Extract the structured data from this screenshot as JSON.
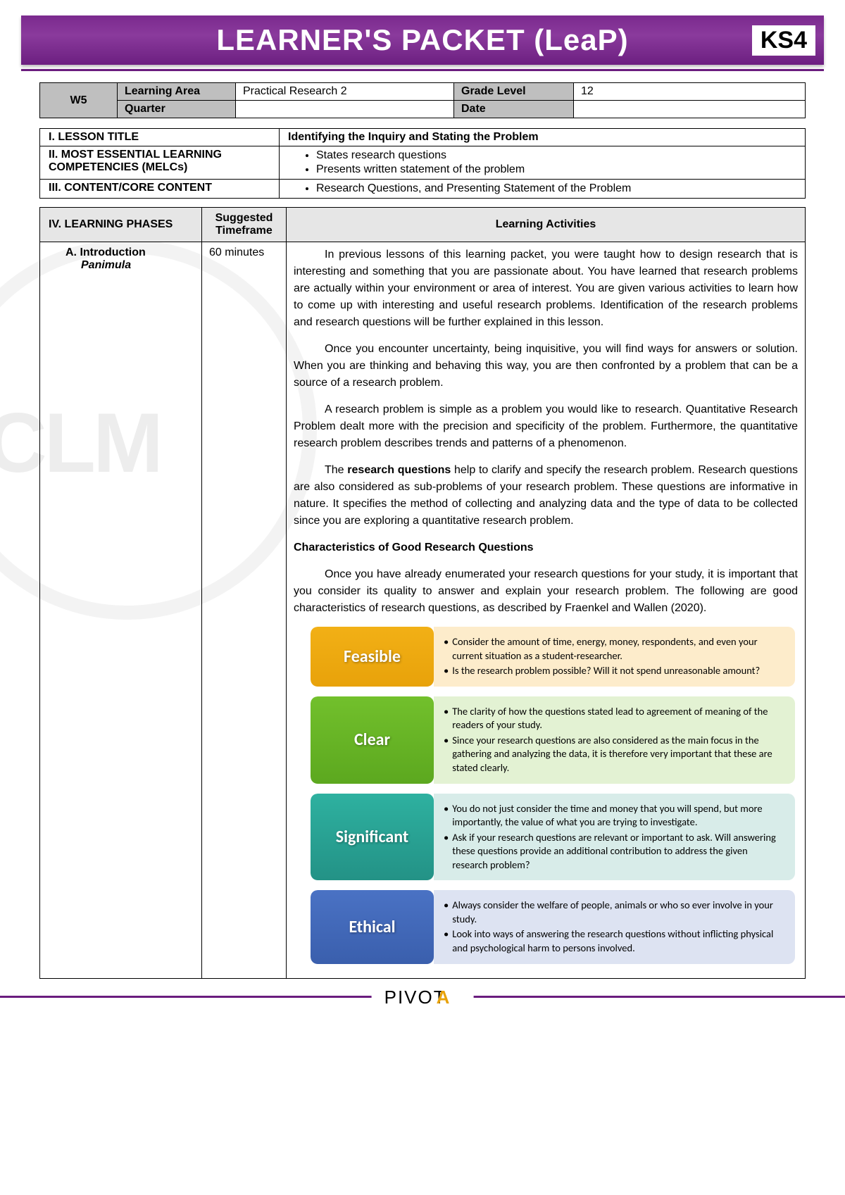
{
  "banner": {
    "title": "LEARNER'S PACKET (LeaP)",
    "badge": "KS4"
  },
  "week": "W5",
  "header": {
    "learningAreaLabel": "Learning Area",
    "learningArea": "Practical Research 2",
    "gradeLevelLabel": "Grade Level",
    "gradeLevel": "12",
    "quarterLabel": "Quarter",
    "quarter": "",
    "dateLabel": "Date",
    "date": ""
  },
  "sections": {
    "lessonTitleLabel": "I.  LESSON TITLE",
    "lessonTitle": "Identifying the Inquiry and Stating the Problem",
    "melcLabel": "II. MOST ESSENTIAL LEARNING COMPETENCIES (MELCs)",
    "melcItems": [
      "States research questions",
      "Presents written statement of the problem"
    ],
    "contentLabel": "III. CONTENT/CORE CONTENT",
    "contentItems": [
      "Research Questions, and Presenting Statement of the Problem"
    ]
  },
  "phasesHeader": {
    "col1": "IV. LEARNING PHASES",
    "col2": "Suggested Timeframe",
    "col3": "Learning Activities"
  },
  "phaseA": {
    "listLabel": "A.",
    "name": "Introduction",
    "sub": "Panimula",
    "time": "60 minutes"
  },
  "intro": {
    "p1": "In previous lessons of this learning packet, you were taught how to design research that is interesting and something that you are passionate about. You have learned that research problems are actually within your environment or area of interest.  You are given various activities to learn how to come up with interesting and useful research problems. Identification of the research problems and research questions will be further explained in this lesson.",
    "p2": "Once you encounter uncertainty, being inquisitive, you will find ways for answers or solution. When you are thinking and behaving this way, you are then confronted by a problem that can be a source of a research problem.",
    "p3": "A research problem is simple as a problem you would like to research. Quantitative Research Problem dealt more with the precision and specificity of the problem. Furthermore, the quantitative research problem describes trends and patterns of a phenomenon.",
    "p4a": "The ",
    "p4b": "research questions",
    "p4c": " help to clarify and specify the research problem. Research questions are also considered as sub-problems of your research problem. These questions are informative in nature.  It specifies the method of collecting and analyzing data and the type of data to be collected since you are exploring a quantitative research problem.",
    "h1": "Characteristics of Good Research Questions",
    "p5": "Once you have already enumerated your research questions for your study, it is important that you consider its quality to answer and explain your research problem. The following are good characteristics of research questions, as described by Fraenkel and Wallen (2020)."
  },
  "characteristics": [
    {
      "label": "Feasible",
      "labelClass": "feasible-l",
      "bodyClass": "feasible-b",
      "points": [
        "Consider the amount of time, energy, money, respondents, and even your current situation as a student-researcher.",
        "Is the research problem possible? Will it not spend unreasonable amount?"
      ]
    },
    {
      "label": "Clear",
      "labelClass": "clear-l",
      "bodyClass": "clear-b",
      "points": [
        "The clarity of how the questions stated lead to agreement of meaning of the readers of your study.",
        "Since your research questions are also considered as the main focus in the gathering and analyzing the data, it is therefore very important that these are stated clearly."
      ]
    },
    {
      "label": "Significant",
      "labelClass": "significant-l",
      "bodyClass": "significant-b",
      "points": [
        "You do not just consider the time and money that you will spend, but more importantly, the value of what you are trying to investigate.",
        "Ask if your research questions are relevant or important to ask. Will answering these questions provide an additional contribution to address the given research problem?"
      ]
    },
    {
      "label": "Ethical",
      "labelClass": "ethical-l",
      "bodyClass": "ethical-b",
      "points": [
        "Always consider the welfare of people, animals or who so ever involve in your study.",
        "Look into ways of answering the research questions without inflicting physical and psychological harm to persons involved."
      ]
    }
  ],
  "footer": {
    "brand": "PIVOT",
    "accent": "A"
  }
}
